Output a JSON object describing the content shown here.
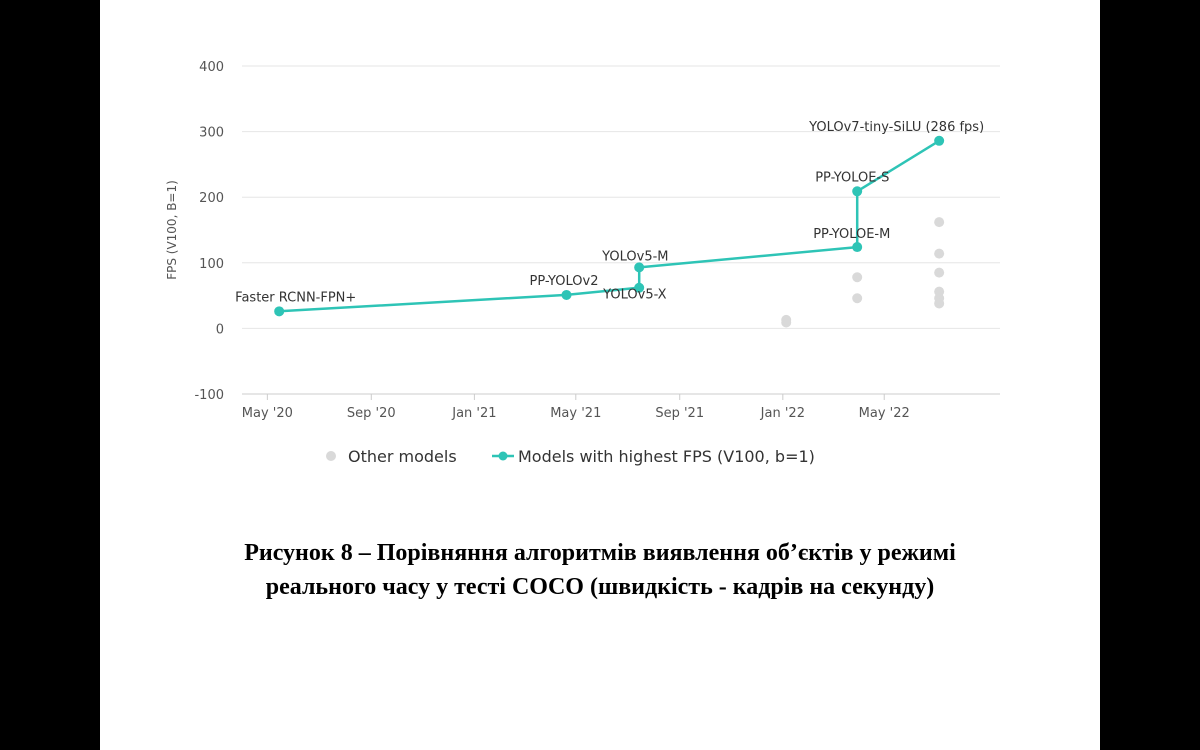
{
  "caption": {
    "line1": "Рисунок 8 – Порівняння алгоритмів виявлення об’єктів у режимі",
    "line2": "реального часу у тесті COCO (швидкість - кадрів на секунду)"
  },
  "chart_data": {
    "type": "line",
    "title": "",
    "xlabel": "",
    "ylabel": "FPS (V100, B=1)",
    "x_type": "date",
    "xlim": [
      "2020-04-01",
      "2022-09-15"
    ],
    "ylim": [
      -100,
      400
    ],
    "y_ticks": [
      -100,
      0,
      100,
      200,
      300,
      400
    ],
    "x_ticks": [
      {
        "date": "2020-05-01",
        "label": "May '20"
      },
      {
        "date": "2020-09-01",
        "label": "Sep '20"
      },
      {
        "date": "2021-01-01",
        "label": "Jan '21"
      },
      {
        "date": "2021-05-01",
        "label": "May '21"
      },
      {
        "date": "2021-09-01",
        "label": "Sep '21"
      },
      {
        "date": "2022-01-01",
        "label": "Jan '22"
      },
      {
        "date": "2022-05-01",
        "label": "May '22"
      }
    ],
    "grid": true,
    "legend_position": "bottom",
    "colors": {
      "best": "#2ec4b6",
      "other": "#d9d9d9"
    },
    "series": [
      {
        "name": "Models with highest FPS (V100, b=1)",
        "style": "line",
        "points": [
          {
            "date": "2020-05-15",
            "y": 26,
            "label": "Faster RCNN-FPN+"
          },
          {
            "date": "2021-04-20",
            "y": 51,
            "label": "PP-YOLOv2"
          },
          {
            "date": "2021-07-15",
            "y": 62,
            "label": "YOLOv5-X"
          },
          {
            "date": "2021-07-15",
            "y": 93,
            "label": "YOLOv5-M"
          },
          {
            "date": "2022-03-30",
            "y": 124,
            "label": "PP-YOLOE-M"
          },
          {
            "date": "2022-03-30",
            "y": 209,
            "label": "PP-YOLOE-S"
          },
          {
            "date": "2022-07-05",
            "y": 286,
            "label": "YOLOv7-tiny-SiLU (286 fps)"
          }
        ]
      },
      {
        "name": "Other models",
        "style": "scatter",
        "points": [
          {
            "date": "2022-01-05",
            "y": 13
          },
          {
            "date": "2022-01-05",
            "y": 9
          },
          {
            "date": "2022-03-30",
            "y": 78
          },
          {
            "date": "2022-03-30",
            "y": 46
          },
          {
            "date": "2022-07-05",
            "y": 162
          },
          {
            "date": "2022-07-05",
            "y": 114
          },
          {
            "date": "2022-07-05",
            "y": 85
          },
          {
            "date": "2022-07-05",
            "y": 56
          },
          {
            "date": "2022-07-05",
            "y": 46
          },
          {
            "date": "2022-07-05",
            "y": 38
          }
        ]
      }
    ]
  }
}
